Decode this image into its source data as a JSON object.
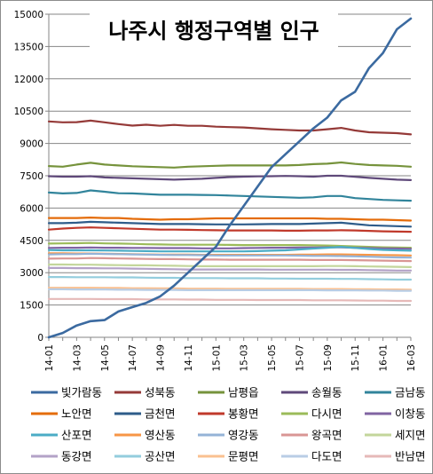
{
  "chart_data": {
    "type": "line",
    "title": "나주시 행정구역별 인구",
    "ylim": [
      0,
      15000
    ],
    "yticks": [
      0,
      1500,
      3000,
      4500,
      6000,
      7500,
      9000,
      10500,
      12000,
      13500,
      15000
    ],
    "grid": "horizontal",
    "legend_position": "bottom",
    "x": [
      "14-01",
      "14-02",
      "14-03",
      "14-04",
      "14-05",
      "14-06",
      "14-07",
      "14-08",
      "14-09",
      "14-10",
      "14-11",
      "14-12",
      "15-01",
      "15-02",
      "15-03",
      "15-04",
      "15-05",
      "15-06",
      "15-07",
      "15-08",
      "15-09",
      "15-10",
      "15-11",
      "15-12",
      "16-01",
      "16-02",
      "16-03"
    ],
    "xtick_labels": [
      "14-01",
      "14-03",
      "14-05",
      "14-07",
      "14-09",
      "14-11",
      "15-01",
      "15-03",
      "15-05",
      "15-07",
      "15-09",
      "15-11",
      "16-01",
      "16-03"
    ],
    "series": [
      {
        "name": "빛가람동",
        "color": "#3b6aa0",
        "width": 2.6,
        "values": [
          0,
          200,
          550,
          750,
          800,
          1200,
          1400,
          1600,
          1900,
          2400,
          3000,
          3600,
          4200,
          5200,
          6100,
          7000,
          7900,
          8500,
          9100,
          9700,
          10200,
          11000,
          11400,
          12500,
          13200,
          14300,
          14800
        ]
      },
      {
        "name": "성북동",
        "color": "#953a38",
        "width": 2.2,
        "values": [
          10020,
          9980,
          9990,
          10060,
          9980,
          9900,
          9830,
          9870,
          9820,
          9860,
          9820,
          9820,
          9780,
          9760,
          9740,
          9700,
          9660,
          9630,
          9600,
          9600,
          9660,
          9720,
          9600,
          9520,
          9500,
          9480,
          9420
        ]
      },
      {
        "name": "남평읍",
        "color": "#76933c",
        "width": 2.2,
        "values": [
          7950,
          7920,
          8020,
          8100,
          8020,
          7980,
          7940,
          7920,
          7900,
          7880,
          7920,
          7940,
          7960,
          7980,
          7980,
          7980,
          7980,
          7980,
          8000,
          8040,
          8060,
          8120,
          8050,
          8000,
          7980,
          7960,
          7920
        ]
      },
      {
        "name": "송월동",
        "color": "#5f497a",
        "width": 2.2,
        "values": [
          7480,
          7460,
          7460,
          7480,
          7420,
          7400,
          7380,
          7360,
          7340,
          7320,
          7340,
          7360,
          7400,
          7440,
          7460,
          7470,
          7480,
          7490,
          7480,
          7460,
          7500,
          7500,
          7450,
          7400,
          7360,
          7320,
          7300
        ]
      },
      {
        "name": "금남동",
        "color": "#31849b",
        "width": 2.2,
        "values": [
          6720,
          6680,
          6700,
          6820,
          6760,
          6690,
          6680,
          6650,
          6620,
          6620,
          6620,
          6610,
          6600,
          6580,
          6560,
          6540,
          6520,
          6500,
          6480,
          6500,
          6560,
          6560,
          6460,
          6420,
          6380,
          6360,
          6340
        ]
      },
      {
        "name": "노안면",
        "color": "#e46c0a",
        "width": 2.2,
        "values": [
          5540,
          5540,
          5540,
          5560,
          5540,
          5540,
          5500,
          5480,
          5460,
          5480,
          5480,
          5500,
          5520,
          5520,
          5520,
          5520,
          5520,
          5520,
          5520,
          5520,
          5500,
          5500,
          5480,
          5460,
          5460,
          5440,
          5420
        ]
      },
      {
        "name": "금천면",
        "color": "#2e5c8a",
        "width": 2.2,
        "values": [
          5300,
          5300,
          5320,
          5360,
          5340,
          5320,
          5300,
          5280,
          5260,
          5260,
          5260,
          5250,
          5240,
          5240,
          5240,
          5250,
          5260,
          5260,
          5260,
          5280,
          5300,
          5320,
          5260,
          5200,
          5180,
          5160,
          5140
        ]
      },
      {
        "name": "봉황면",
        "color": "#c0392b",
        "width": 2.2,
        "values": [
          5000,
          5050,
          5080,
          5100,
          5080,
          5060,
          5040,
          5020,
          5000,
          5000,
          4990,
          4980,
          4970,
          4960,
          4960,
          4960,
          4960,
          4950,
          4950,
          4960,
          4960,
          4970,
          4960,
          4940,
          4920,
          4910,
          4900
        ]
      },
      {
        "name": "다시면",
        "color": "#9bbb59",
        "width": 2.2,
        "values": [
          4350,
          4360,
          4370,
          4380,
          4360,
          4350,
          4340,
          4320,
          4310,
          4300,
          4300,
          4300,
          4300,
          4290,
          4280,
          4280,
          4280,
          4280,
          4280,
          4270,
          4260,
          4240,
          4220,
          4200,
          4180,
          4170,
          4160
        ]
      },
      {
        "name": "이창동",
        "color": "#8064a2",
        "width": 2.2,
        "values": [
          4150,
          4160,
          4160,
          4170,
          4160,
          4160,
          4150,
          4150,
          4140,
          4140,
          4140,
          4130,
          4130,
          4130,
          4140,
          4150,
          4160,
          4160,
          4170,
          4170,
          4180,
          4180,
          4160,
          4140,
          4130,
          4120,
          4110
        ]
      },
      {
        "name": "산포면",
        "color": "#4bacc6",
        "width": 2.2,
        "values": [
          4050,
          4040,
          4040,
          4040,
          4030,
          4020,
          4010,
          4000,
          3990,
          3990,
          3990,
          3990,
          3990,
          3990,
          3990,
          4000,
          4020,
          4040,
          4080,
          4120,
          4160,
          4200,
          4150,
          4100,
          4060,
          4040,
          4020
        ]
      },
      {
        "name": "영산동",
        "color": "#f79646",
        "width": 2.2,
        "values": [
          3900,
          3900,
          3890,
          3890,
          3880,
          3870,
          3860,
          3850,
          3840,
          3840,
          3840,
          3830,
          3830,
          3830,
          3830,
          3830,
          3830,
          3830,
          3840,
          3840,
          3850,
          3850,
          3840,
          3830,
          3820,
          3810,
          3800
        ]
      },
      {
        "name": "영강동",
        "color": "#95b3d7",
        "width": 2.2,
        "values": [
          3850,
          3860,
          3860,
          3880,
          3870,
          3860,
          3850,
          3840,
          3830,
          3820,
          3820,
          3810,
          3800,
          3800,
          3800,
          3800,
          3800,
          3800,
          3790,
          3780,
          3780,
          3770,
          3760,
          3740,
          3720,
          3710,
          3700
        ]
      },
      {
        "name": "왕곡면",
        "color": "#d99694",
        "width": 2.2,
        "values": [
          3650,
          3660,
          3660,
          3680,
          3670,
          3660,
          3650,
          3640,
          3630,
          3630,
          3620,
          3610,
          3610,
          3600,
          3600,
          3600,
          3600,
          3600,
          3600,
          3590,
          3590,
          3590,
          3580,
          3570,
          3560,
          3550,
          3540
        ]
      },
      {
        "name": "세지면",
        "color": "#c3d69b",
        "width": 2.2,
        "values": [
          3380,
          3380,
          3370,
          3370,
          3360,
          3350,
          3340,
          3340,
          3330,
          3320,
          3310,
          3300,
          3300,
          3300,
          3300,
          3300,
          3300,
          3300,
          3300,
          3300,
          3310,
          3310,
          3300,
          3290,
          3280,
          3270,
          3260
        ]
      },
      {
        "name": "동강면",
        "color": "#b3a2c7",
        "width": 2.2,
        "values": [
          3220,
          3220,
          3210,
          3210,
          3200,
          3200,
          3190,
          3180,
          3170,
          3160,
          3150,
          3150,
          3150,
          3150,
          3150,
          3150,
          3140,
          3140,
          3140,
          3140,
          3140,
          3130,
          3130,
          3120,
          3110,
          3100,
          3100
        ]
      },
      {
        "name": "공산면",
        "color": "#93cddd",
        "width": 2.2,
        "values": [
          2800,
          2800,
          2790,
          2790,
          2790,
          2780,
          2780,
          2770,
          2760,
          2760,
          2750,
          2750,
          2750,
          2740,
          2740,
          2740,
          2730,
          2730,
          2720,
          2720,
          2720,
          2710,
          2710,
          2700,
          2690,
          2680,
          2680
        ]
      },
      {
        "name": "문평면",
        "color": "#fac090",
        "width": 2.2,
        "values": [
          2300,
          2300,
          2300,
          2300,
          2290,
          2290,
          2280,
          2280,
          2270,
          2270,
          2260,
          2260,
          2260,
          2250,
          2250,
          2250,
          2250,
          2250,
          2250,
          2240,
          2240,
          2240,
          2230,
          2230,
          2220,
          2220,
          2210
        ]
      },
      {
        "name": "다도면",
        "color": "#b9cde5",
        "width": 2.2,
        "values": [
          2230,
          2230,
          2220,
          2220,
          2220,
          2210,
          2210,
          2200,
          2200,
          2200,
          2190,
          2190,
          2190,
          2190,
          2190,
          2190,
          2190,
          2190,
          2190,
          2190,
          2180,
          2180,
          2180,
          2170,
          2170,
          2160,
          2160
        ]
      },
      {
        "name": "반남면",
        "color": "#e6b9b8",
        "width": 2.2,
        "values": [
          1780,
          1780,
          1780,
          1780,
          1770,
          1770,
          1770,
          1760,
          1760,
          1760,
          1750,
          1750,
          1740,
          1740,
          1740,
          1730,
          1730,
          1730,
          1730,
          1720,
          1720,
          1720,
          1710,
          1700,
          1700,
          1690,
          1690
        ]
      }
    ]
  }
}
